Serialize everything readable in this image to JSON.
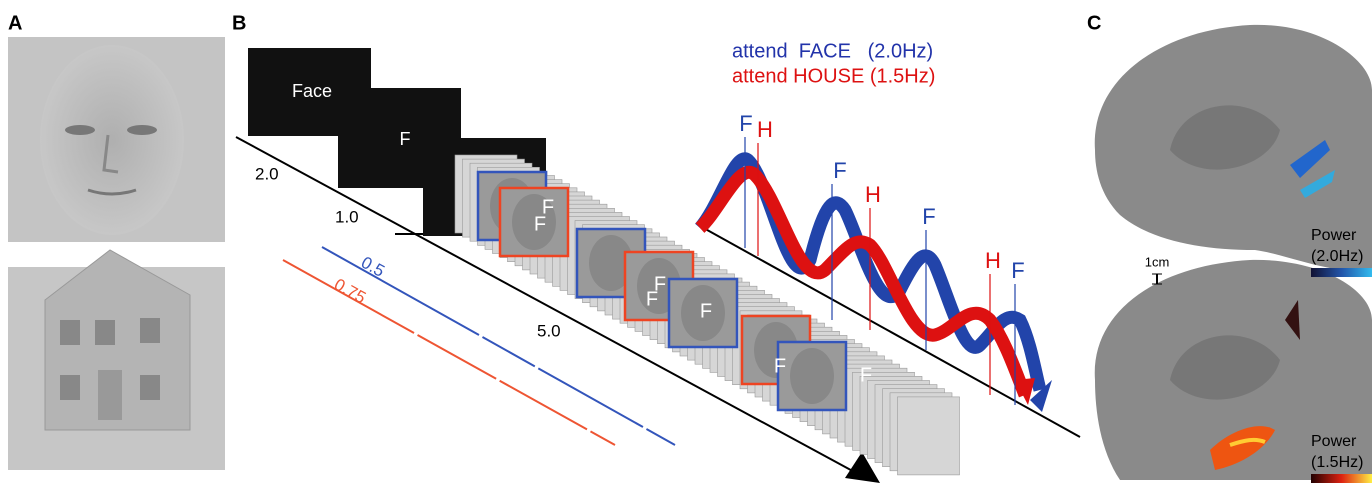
{
  "panels": {
    "a": {
      "label": "A"
    },
    "b": {
      "label": "B",
      "legend": [
        "attend  FACE   (2.0Hz)",
        "attend HOUSE (1.5Hz)"
      ],
      "cues": [
        "Face",
        "F"
      ],
      "time_labels": [
        "2.0",
        "1.0",
        "5.0"
      ],
      "rate_labels": [
        "0.5",
        "0.75"
      ],
      "frame_labels": [
        "F",
        "F",
        "F",
        "F",
        "F",
        "F",
        "F"
      ],
      "wave_labels": [
        "F",
        "H",
        "F",
        "H",
        "F",
        "H",
        "F"
      ]
    },
    "c": {
      "label": "C",
      "scale_bar": "1cm",
      "colorbars": [
        {
          "title": "Power",
          "band": "(2.0Hz)"
        },
        {
          "title": "Power",
          "band": "(1.5Hz)"
        }
      ]
    }
  }
}
